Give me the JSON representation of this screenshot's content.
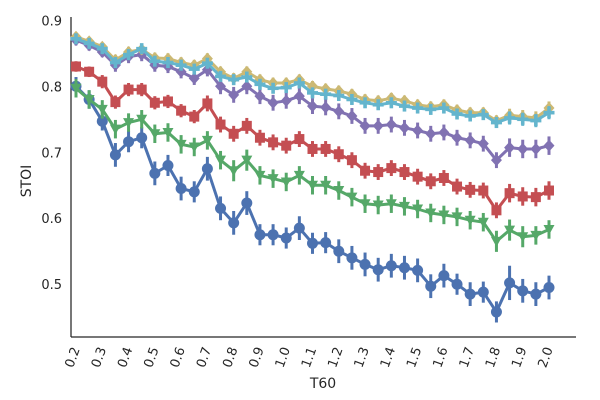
{
  "chart_data": {
    "type": "line",
    "xlabel": "T60",
    "ylabel": "STOI",
    "ylim": [
      0.42,
      0.905
    ],
    "yticks": [
      0.5,
      0.6,
      0.7,
      0.8,
      0.9
    ],
    "ytick_labels": [
      "0.5",
      "0.6",
      "0.7",
      "0.8",
      "0.9"
    ],
    "x": [
      0.2,
      0.25,
      0.3,
      0.35,
      0.4,
      0.45,
      0.5,
      0.55,
      0.6,
      0.65,
      0.7,
      0.75,
      0.8,
      0.85,
      0.9,
      0.95,
      1.0,
      1.05,
      1.1,
      1.15,
      1.2,
      1.25,
      1.3,
      1.35,
      1.4,
      1.45,
      1.5,
      1.55,
      1.6,
      1.65,
      1.7,
      1.75,
      1.8,
      1.85,
      1.9,
      1.95,
      2.0
    ],
    "xticks": [
      "0.2",
      "0.3",
      "0.4",
      "0.5",
      "0.6",
      "0.7",
      "0.8",
      "0.9",
      "1.0",
      "1.1",
      "1.2",
      "1.3",
      "1.4",
      "1.5",
      "1.6",
      "1.7",
      "1.8",
      "1.9",
      "2.0"
    ],
    "grid": false,
    "series": [
      {
        "color": "#4C72B0",
        "marker": "circle",
        "values": [
          0.8,
          0.78,
          0.747,
          0.696,
          0.716,
          0.722,
          0.668,
          0.68,
          0.645,
          0.64,
          0.675,
          0.615,
          0.593,
          0.623,
          0.575,
          0.575,
          0.57,
          0.585,
          0.562,
          0.563,
          0.55,
          0.54,
          0.53,
          0.522,
          0.528,
          0.525,
          0.521,
          0.497,
          0.513,
          0.5,
          0.485,
          0.488,
          0.458,
          0.502,
          0.49,
          0.485,
          0.495
        ],
        "err": [
          0.014,
          0.014,
          0.014,
          0.018,
          0.016,
          0.016,
          0.018,
          0.016,
          0.018,
          0.016,
          0.018,
          0.018,
          0.018,
          0.018,
          0.016,
          0.016,
          0.016,
          0.018,
          0.016,
          0.016,
          0.018,
          0.018,
          0.018,
          0.018,
          0.018,
          0.018,
          0.018,
          0.018,
          0.018,
          0.016,
          0.018,
          0.016,
          0.016,
          0.026,
          0.018,
          0.018,
          0.018
        ]
      },
      {
        "color": "#55A868",
        "marker": "triangle-down",
        "values": [
          0.797,
          0.78,
          0.765,
          0.735,
          0.745,
          0.75,
          0.728,
          0.73,
          0.712,
          0.708,
          0.718,
          0.688,
          0.672,
          0.688,
          0.665,
          0.66,
          0.655,
          0.665,
          0.65,
          0.65,
          0.642,
          0.632,
          0.622,
          0.62,
          0.622,
          0.618,
          0.614,
          0.608,
          0.605,
          0.602,
          0.597,
          0.594,
          0.565,
          0.582,
          0.572,
          0.574,
          0.583
        ],
        "err": [
          0.014,
          0.014,
          0.014,
          0.014,
          0.014,
          0.014,
          0.014,
          0.014,
          0.014,
          0.014,
          0.014,
          0.014,
          0.016,
          0.016,
          0.014,
          0.014,
          0.014,
          0.014,
          0.014,
          0.014,
          0.014,
          0.014,
          0.014,
          0.014,
          0.014,
          0.014,
          0.014,
          0.014,
          0.014,
          0.014,
          0.014,
          0.014,
          0.016,
          0.016,
          0.016,
          0.014,
          0.014
        ]
      },
      {
        "color": "#C44E52",
        "marker": "square",
        "values": [
          0.83,
          0.822,
          0.807,
          0.776,
          0.795,
          0.795,
          0.775,
          0.777,
          0.763,
          0.754,
          0.774,
          0.742,
          0.728,
          0.74,
          0.722,
          0.715,
          0.71,
          0.72,
          0.705,
          0.705,
          0.697,
          0.688,
          0.672,
          0.67,
          0.676,
          0.67,
          0.663,
          0.656,
          0.661,
          0.648,
          0.643,
          0.642,
          0.612,
          0.638,
          0.633,
          0.632,
          0.642
        ],
        "err": [
          0.008,
          0.008,
          0.01,
          0.01,
          0.01,
          0.01,
          0.01,
          0.01,
          0.01,
          0.01,
          0.012,
          0.012,
          0.012,
          0.012,
          0.012,
          0.012,
          0.012,
          0.012,
          0.012,
          0.012,
          0.012,
          0.012,
          0.012,
          0.012,
          0.012,
          0.012,
          0.012,
          0.012,
          0.012,
          0.012,
          0.012,
          0.012,
          0.012,
          0.014,
          0.014,
          0.014,
          0.014
        ]
      },
      {
        "color": "#8172B2",
        "marker": "diamond",
        "values": [
          0.87,
          0.862,
          0.852,
          0.832,
          0.845,
          0.848,
          0.832,
          0.83,
          0.822,
          0.812,
          0.825,
          0.8,
          0.787,
          0.8,
          0.785,
          0.775,
          0.778,
          0.785,
          0.77,
          0.768,
          0.762,
          0.755,
          0.74,
          0.74,
          0.742,
          0.737,
          0.733,
          0.728,
          0.73,
          0.722,
          0.718,
          0.713,
          0.688,
          0.707,
          0.705,
          0.705,
          0.71
        ],
        "err": [
          0.008,
          0.008,
          0.008,
          0.01,
          0.01,
          0.01,
          0.01,
          0.01,
          0.01,
          0.01,
          0.01,
          0.012,
          0.012,
          0.012,
          0.012,
          0.012,
          0.012,
          0.012,
          0.012,
          0.012,
          0.012,
          0.012,
          0.012,
          0.012,
          0.012,
          0.012,
          0.012,
          0.012,
          0.012,
          0.012,
          0.012,
          0.012,
          0.012,
          0.014,
          0.014,
          0.014,
          0.014
        ]
      },
      {
        "color": "#CCB974",
        "marker": "diamond",
        "values": [
          0.875,
          0.868,
          0.86,
          0.84,
          0.852,
          0.856,
          0.843,
          0.842,
          0.836,
          0.832,
          0.842,
          0.822,
          0.812,
          0.822,
          0.81,
          0.805,
          0.805,
          0.81,
          0.8,
          0.796,
          0.793,
          0.788,
          0.78,
          0.778,
          0.782,
          0.778,
          0.772,
          0.769,
          0.772,
          0.764,
          0.76,
          0.76,
          0.748,
          0.756,
          0.754,
          0.752,
          0.767
        ],
        "err": [
          0.006,
          0.006,
          0.006,
          0.008,
          0.008,
          0.008,
          0.008,
          0.008,
          0.008,
          0.008,
          0.008,
          0.008,
          0.008,
          0.008,
          0.008,
          0.008,
          0.008,
          0.008,
          0.008,
          0.008,
          0.008,
          0.008,
          0.008,
          0.008,
          0.008,
          0.008,
          0.008,
          0.008,
          0.008,
          0.008,
          0.008,
          0.008,
          0.008,
          0.01,
          0.01,
          0.01,
          0.01
        ]
      },
      {
        "color": "#64B5CD",
        "marker": "plus",
        "values": [
          0.872,
          0.865,
          0.857,
          0.836,
          0.848,
          0.857,
          0.838,
          0.836,
          0.832,
          0.826,
          0.835,
          0.815,
          0.81,
          0.814,
          0.803,
          0.797,
          0.798,
          0.805,
          0.79,
          0.788,
          0.786,
          0.78,
          0.775,
          0.772,
          0.775,
          0.77,
          0.767,
          0.765,
          0.767,
          0.758,
          0.755,
          0.757,
          0.745,
          0.752,
          0.75,
          0.748,
          0.76
        ],
        "err": [
          0.006,
          0.006,
          0.006,
          0.008,
          0.008,
          0.008,
          0.008,
          0.008,
          0.008,
          0.008,
          0.008,
          0.008,
          0.008,
          0.008,
          0.008,
          0.008,
          0.008,
          0.008,
          0.008,
          0.008,
          0.008,
          0.008,
          0.008,
          0.008,
          0.008,
          0.008,
          0.008,
          0.008,
          0.008,
          0.008,
          0.008,
          0.008,
          0.008,
          0.01,
          0.01,
          0.01,
          0.01
        ]
      }
    ]
  }
}
